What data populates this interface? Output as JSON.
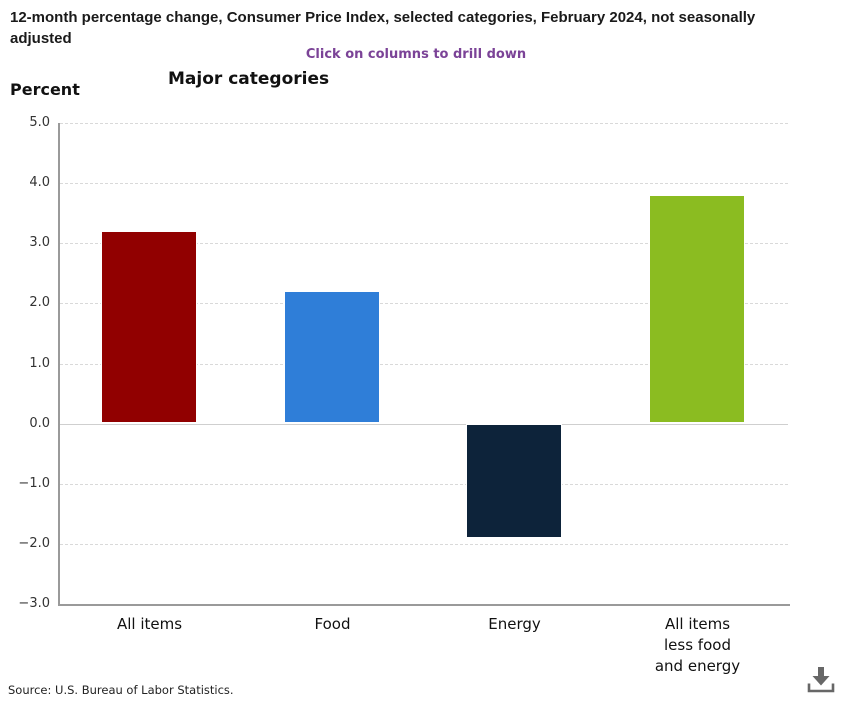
{
  "header": {
    "title": "12-month percentage change, Consumer Price Index, selected categories, February 2024, not seasonally adjusted",
    "drilldown_note": "Click on columns to drill down",
    "drilldown_color": "#7b4397"
  },
  "chart_data": {
    "type": "bar",
    "title": "Major categories",
    "ylabel": "Percent",
    "categories": [
      "All items",
      "Food",
      "Energy",
      "All items\nless food\nand energy"
    ],
    "values": [
      3.2,
      2.2,
      -1.9,
      3.8
    ],
    "colors": [
      "#910000",
      "#2f7ed8",
      "#0d233a",
      "#8bbc21"
    ],
    "bar_names": [
      "all-items",
      "food",
      "energy",
      "all-items-less-food-and-energy"
    ],
    "ylim": [
      -3.0,
      5.0
    ],
    "yticks": [
      5.0,
      4.0,
      3.0,
      2.0,
      1.0,
      0.0,
      -1.0,
      -2.0,
      -3.0
    ],
    "grid": "horizontal dashed",
    "legend": "none",
    "axis_color": "#9a9a9a"
  },
  "footer": {
    "source": "Source: U.S. Bureau of Labor Statistics.",
    "download_icon": "download-icon"
  }
}
